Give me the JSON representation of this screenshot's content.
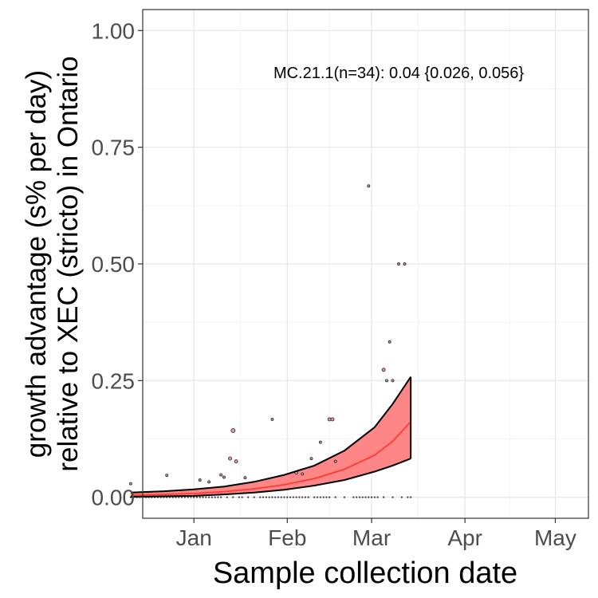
{
  "chart_data": {
    "type": "scatter",
    "title": "",
    "xlabel": "Sample collection date",
    "ylabel_line1": "growth advantage (s% per day)",
    "ylabel_line2": "relative to XEC (stricto) in Ontario",
    "annotation": "MC.21.1(n=34): 0.04 {0.026, 0.056}",
    "xlim": [
      -17,
      131
    ],
    "ylim": [
      -0.045,
      1.045
    ],
    "x_ticks": [
      {
        "label": "Jan",
        "value": 0
      },
      {
        "label": "Feb",
        "value": 31
      },
      {
        "label": "Mar",
        "value": 59
      },
      {
        "label": "Apr",
        "value": 90
      },
      {
        "label": "May",
        "value": 120
      }
    ],
    "y_ticks": [
      {
        "label": "0.00",
        "value": 0
      },
      {
        "label": "0.25",
        "value": 0.25
      },
      {
        "label": "0.50",
        "value": 0.5
      },
      {
        "label": "0.75",
        "value": 0.75
      },
      {
        "label": "1.00",
        "value": 1.0
      }
    ],
    "grid": true,
    "fit": {
      "x_start": -21,
      "x_end": 72,
      "color": "#ff3b30",
      "band_fill": "#ff8080",
      "center": [
        [
          -21,
          0.004
        ],
        [
          -10,
          0.006
        ],
        [
          0,
          0.008
        ],
        [
          10,
          0.012
        ],
        [
          20,
          0.018
        ],
        [
          30,
          0.027
        ],
        [
          40,
          0.04
        ],
        [
          50,
          0.06
        ],
        [
          60,
          0.09
        ],
        [
          66,
          0.12
        ],
        [
          72,
          0.162
        ]
      ],
      "upper": [
        [
          -21,
          0.01
        ],
        [
          -10,
          0.013
        ],
        [
          0,
          0.017
        ],
        [
          10,
          0.023
        ],
        [
          20,
          0.033
        ],
        [
          30,
          0.048
        ],
        [
          40,
          0.068
        ],
        [
          50,
          0.1
        ],
        [
          60,
          0.15
        ],
        [
          66,
          0.2
        ],
        [
          72,
          0.258
        ]
      ],
      "lower": [
        [
          -21,
          0.001
        ],
        [
          -10,
          0.002
        ],
        [
          0,
          0.003
        ],
        [
          10,
          0.006
        ],
        [
          20,
          0.01
        ],
        [
          30,
          0.016
        ],
        [
          40,
          0.025
        ],
        [
          50,
          0.037
        ],
        [
          60,
          0.055
        ],
        [
          66,
          0.068
        ],
        [
          72,
          0.083
        ]
      ]
    },
    "points": [
      {
        "x": -21,
        "y": 0.029,
        "size": 1.5
      },
      {
        "x": -9,
        "y": 0.047,
        "size": 1.5
      },
      {
        "x": 2,
        "y": 0.037,
        "size": 1.5
      },
      {
        "x": 5,
        "y": 0.033,
        "size": 1.5
      },
      {
        "x": 9,
        "y": 0.048,
        "size": 1.5
      },
      {
        "x": 10,
        "y": 0.043,
        "size": 1.5
      },
      {
        "x": 12,
        "y": 0.083,
        "size": 2
      },
      {
        "x": 13,
        "y": 0.143,
        "size": 2.5
      },
      {
        "x": 14,
        "y": 0.077,
        "size": 2
      },
      {
        "x": 17,
        "y": 0.042,
        "size": 1.5
      },
      {
        "x": 26,
        "y": 0.167,
        "size": 1.5
      },
      {
        "x": 34,
        "y": 0.053,
        "size": 2
      },
      {
        "x": 36,
        "y": 0.05,
        "size": 1.5
      },
      {
        "x": 39,
        "y": 0.083,
        "size": 1.5
      },
      {
        "x": 42,
        "y": 0.118,
        "size": 1.5
      },
      {
        "x": 45,
        "y": 0.167,
        "size": 2
      },
      {
        "x": 46,
        "y": 0.167,
        "size": 2
      },
      {
        "x": 47,
        "y": 0.077,
        "size": 1.5
      },
      {
        "x": 58,
        "y": 0.667,
        "size": 1.5
      },
      {
        "x": 63,
        "y": 0.273,
        "size": 2
      },
      {
        "x": 64,
        "y": 0.25,
        "size": 1.5
      },
      {
        "x": 65,
        "y": 0.333,
        "size": 1.5
      },
      {
        "x": 66,
        "y": 0.25,
        "size": 1.5
      },
      {
        "x": 68,
        "y": 0.5,
        "size": 1.5
      },
      {
        "x": 70,
        "y": 0.5,
        "size": 1.5
      }
    ],
    "zero_points_x": [
      -21,
      -20,
      -19,
      -18,
      -17,
      -16,
      -15,
      -14,
      -13,
      -12,
      -11,
      -10,
      -9,
      -8,
      -7,
      -6,
      -5,
      -4,
      -3,
      -2,
      -1,
      0,
      1,
      2,
      3,
      4,
      5,
      6,
      7,
      8,
      9,
      11,
      13,
      15,
      16,
      18,
      20,
      22,
      23,
      24,
      25,
      26,
      27,
      28,
      29,
      30,
      31,
      32,
      33,
      34,
      35,
      36,
      37,
      38,
      40,
      41,
      42,
      43,
      44,
      45,
      47,
      50,
      53,
      54,
      55,
      56,
      57,
      58,
      59,
      60,
      61,
      63,
      66,
      69,
      71,
      72
    ]
  }
}
